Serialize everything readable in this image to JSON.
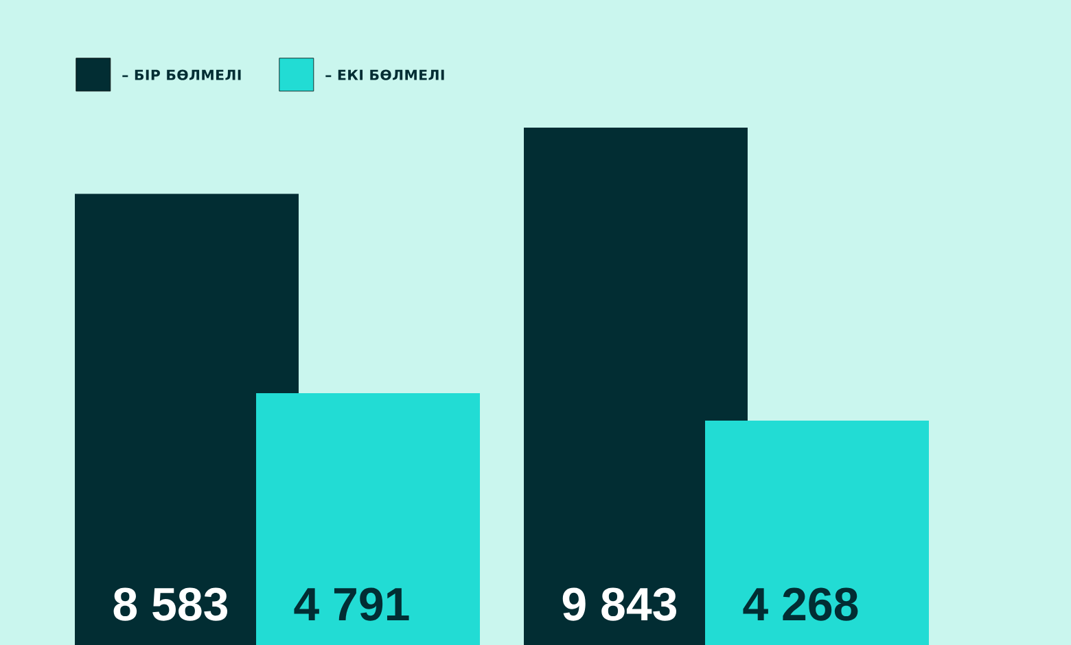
{
  "chart_data": {
    "type": "bar",
    "categories": [
      null,
      null
    ],
    "series": [
      {
        "name": "– БІР БӨЛМЕЛІ",
        "color": "#022d33",
        "values": [
          8583,
          9843
        ],
        "value_labels": [
          "8 583",
          "9 843"
        ]
      },
      {
        "name": "– ЕКІ БӨЛМЕЛІ",
        "color": "#22dcd4",
        "values": [
          4791,
          4268
        ],
        "value_labels": [
          "4 791",
          "4 268"
        ]
      }
    ],
    "legend": "top left"
  }
}
